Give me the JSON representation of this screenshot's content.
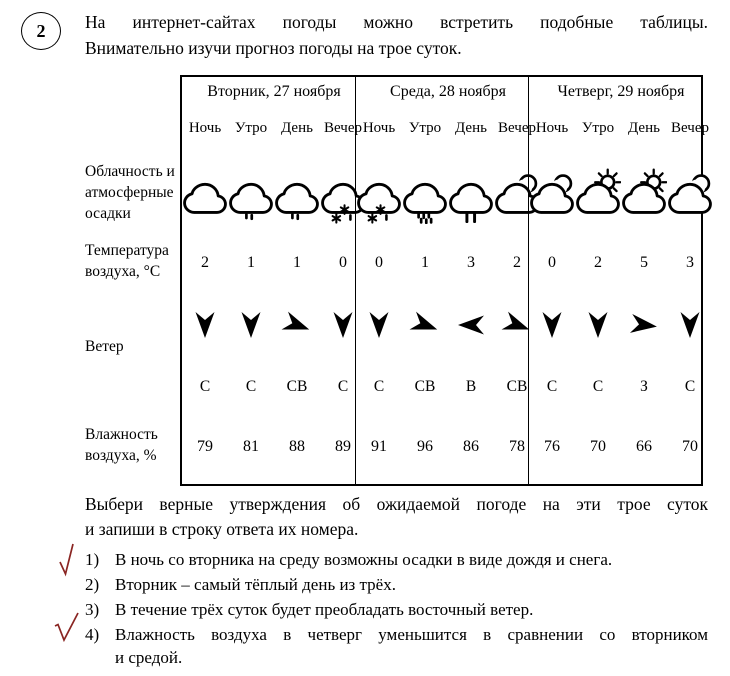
{
  "task_number": "2",
  "intro": {
    "line1": "На интернет-сайтах погоды можно встретить подобные таблицы.",
    "line2": "Внимательно изучи прогноз погоды на трое суток."
  },
  "table": {
    "row_labels": {
      "clouds": "Облачность и атмосферные осадки",
      "temperature": "Температура воздуха, °С",
      "wind": "Ветер",
      "humidity": "Влажность воздуха, %"
    },
    "time_headers": [
      "Ночь",
      "Утро",
      "День",
      "Вечер"
    ],
    "days": [
      {
        "date": "Вторник, 27 ноября",
        "icons": [
          "cloud",
          "cloud-drizzle",
          "cloud-drizzle",
          "cloud-sleet"
        ],
        "temperature": [
          "2",
          "1",
          "1",
          "0"
        ],
        "wind_arrows": [
          "down",
          "down",
          "down-right",
          "down"
        ],
        "wind_labels": [
          "С",
          "С",
          "СВ",
          "С"
        ],
        "humidity": [
          "79",
          "81",
          "88",
          "89"
        ]
      },
      {
        "date": "Среда, 28 ноября",
        "icons": [
          "cloud-sleet",
          "cloud-rain-heavy",
          "cloud-rain",
          "cloud-moon"
        ],
        "temperature": [
          "0",
          "1",
          "3",
          "2"
        ],
        "wind_arrows": [
          "down",
          "down-right",
          "left",
          "down-right"
        ],
        "wind_labels": [
          "С",
          "СВ",
          "В",
          "СВ"
        ],
        "humidity": [
          "91",
          "96",
          "86",
          "78"
        ]
      },
      {
        "date": "Четверг, 29 ноября",
        "icons": [
          "cloud-moon",
          "cloud-sun",
          "cloud-sun",
          "cloud-moon"
        ],
        "temperature": [
          "0",
          "2",
          "5",
          "3"
        ],
        "wind_arrows": [
          "down",
          "down",
          "right",
          "down"
        ],
        "wind_labels": [
          "С",
          "С",
          "З",
          "С"
        ],
        "humidity": [
          "76",
          "70",
          "66",
          "70"
        ]
      }
    ]
  },
  "question": {
    "line1": "Выбери верные утверждения об ожидаемой погоде на эти трое суток",
    "line2": "и запиши в строку ответа их номера."
  },
  "options": [
    {
      "num": "1)",
      "lines": [
        "В ночь со вторника на среду возможны осадки в виде дождя и снега."
      ],
      "checked": true
    },
    {
      "num": "2)",
      "lines": [
        "Вторник – самый тёплый день из трёх."
      ],
      "checked": false
    },
    {
      "num": "3)",
      "lines": [
        "В течение трёх суток будет преобладать восточный ветер."
      ],
      "checked": false
    },
    {
      "num": "4)",
      "lines": [
        "Влажность воздуха в четверг уменьшится в сравнении со вторником",
        "и средой."
      ],
      "checked": true
    }
  ],
  "colors": {
    "check_mark": "#8a2522",
    "text": "#000000",
    "background": "#ffffff"
  }
}
